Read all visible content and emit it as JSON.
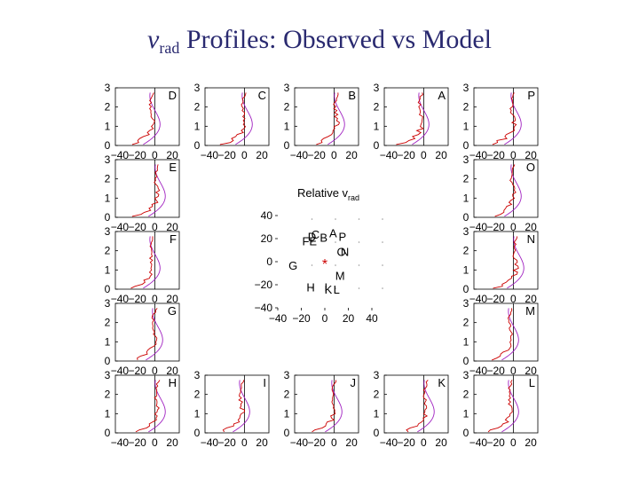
{
  "page": {
    "title_var": "v",
    "title_sub": "rad",
    "title_rest": " Profiles: Observed vs Model"
  },
  "chart_data": {
    "type": "line",
    "title": "v_rad Profiles: Observed vs Model",
    "panel_axes": {
      "y_ticks": [
        "0",
        "1",
        "2",
        "3"
      ],
      "x_ticks": [
        "−40",
        "−20",
        "0",
        "20"
      ],
      "ylim": [
        0,
        3
      ],
      "xlim": [
        -45,
        28
      ]
    },
    "panels": [
      {
        "label": "D",
        "position": "top-1"
      },
      {
        "label": "C",
        "position": "top-2"
      },
      {
        "label": "B",
        "position": "top-3"
      },
      {
        "label": "A",
        "position": "top-4"
      },
      {
        "label": "P",
        "position": "top-5"
      },
      {
        "label": "E",
        "position": "left-2"
      },
      {
        "label": "F",
        "position": "left-3"
      },
      {
        "label": "G",
        "position": "left-4"
      },
      {
        "label": "H",
        "position": "bottom-1"
      },
      {
        "label": "I",
        "position": "bottom-2"
      },
      {
        "label": "J",
        "position": "bottom-3"
      },
      {
        "label": "K",
        "position": "bottom-4"
      },
      {
        "label": "L",
        "position": "bottom-5"
      },
      {
        "label": "O",
        "position": "right-2"
      },
      {
        "label": "N",
        "position": "right-3"
      },
      {
        "label": "M",
        "position": "right-4"
      }
    ],
    "series": [
      {
        "name": "Observed",
        "color": "#cc0000"
      },
      {
        "name": "Model",
        "color": "#a020c0"
      }
    ],
    "center_map": {
      "title": "Relative v",
      "title_sub": "rad",
      "x_ticks": [
        "−40",
        "−20",
        "0",
        "20",
        "40"
      ],
      "y_ticks": [
        "40",
        "20",
        "0",
        "−20",
        "−40"
      ],
      "xlim": [
        -40,
        40
      ],
      "ylim": [
        -40,
        40
      ],
      "center_marker": "*",
      "labels": [
        {
          "text": "C",
          "x": -8,
          "y": 24
        },
        {
          "text": "A",
          "x": 7,
          "y": 25
        },
        {
          "text": "D",
          "x": -11,
          "y": 22
        },
        {
          "text": "B",
          "x": -1,
          "y": 21
        },
        {
          "text": "P",
          "x": 15,
          "y": 22
        },
        {
          "text": "FE",
          "x": -13,
          "y": 18
        },
        {
          "text": "O",
          "x": 14,
          "y": 9
        },
        {
          "text": "N",
          "x": 17,
          "y": 9
        },
        {
          "text": "G",
          "x": -27,
          "y": -3
        },
        {
          "text": "M",
          "x": 13,
          "y": -12
        },
        {
          "text": "H",
          "x": -12,
          "y": -22
        },
        {
          "text": "I",
          "x": 1,
          "y": -22
        },
        {
          "text": "K",
          "x": 3,
          "y": -24
        },
        {
          "text": "L",
          "x": 10,
          "y": -24
        }
      ]
    }
  }
}
